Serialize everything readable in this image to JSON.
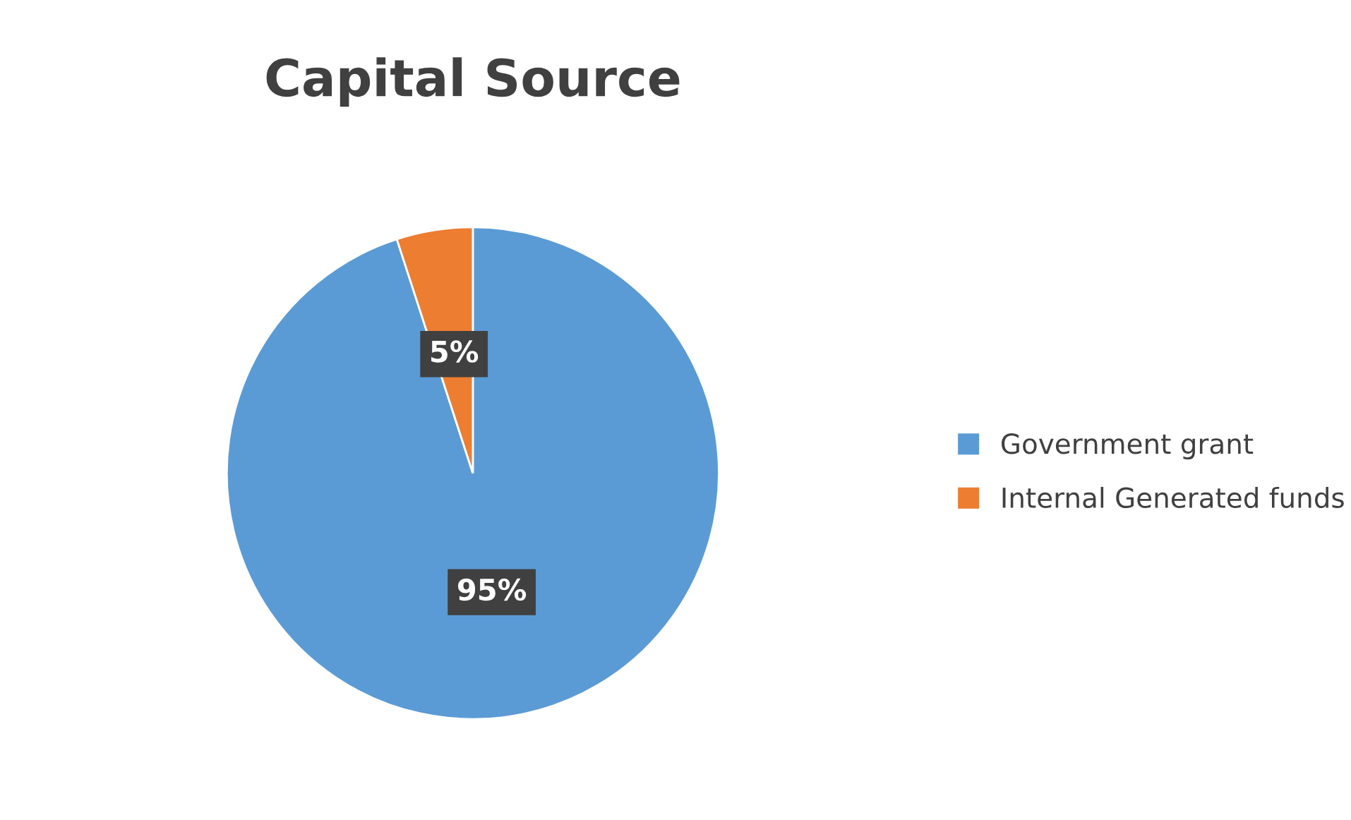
{
  "chart_data": {
    "type": "pie",
    "title": "Capital Source",
    "categories": [
      "Government grant",
      "Internal Generated funds"
    ],
    "values": [
      95,
      5
    ],
    "colors": [
      "#5b9bd5",
      "#ed7d31"
    ],
    "value_labels": [
      "95%",
      "5%"
    ],
    "legend": "right"
  }
}
